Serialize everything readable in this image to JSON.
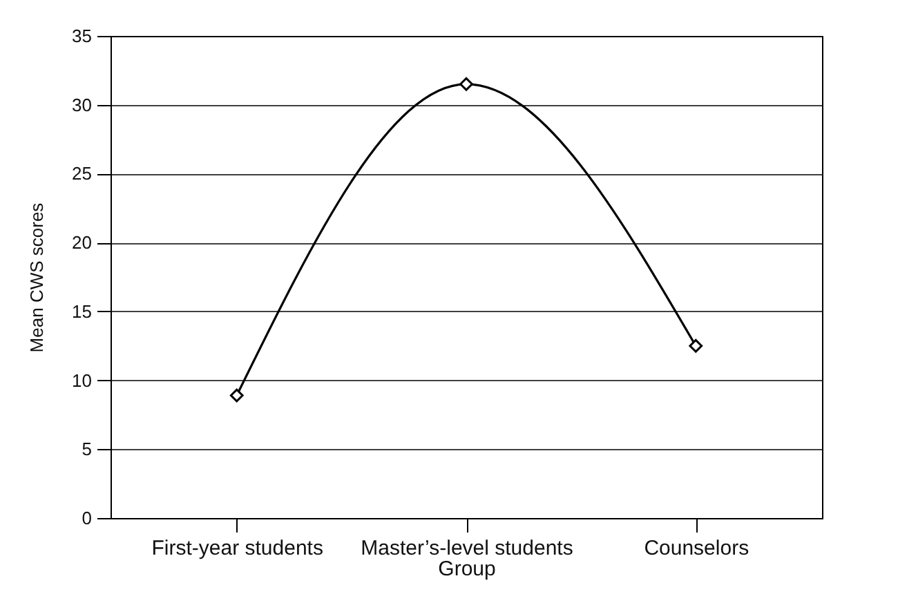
{
  "chart_data": {
    "type": "line",
    "xlabel": "Group",
    "ylabel": "Mean CWS scores",
    "categories": [
      "First-year students",
      "Master’s-level students",
      "Counselors"
    ],
    "series": [
      {
        "color": "#000000",
        "values": [
          8.9,
          31.5,
          12.5
        ]
      }
    ],
    "ylim": [
      0,
      35
    ],
    "yticks": [
      0,
      5,
      10,
      15,
      20,
      25,
      30,
      35
    ],
    "grid": "y",
    "marker": "diamond",
    "line_style": "solid"
  }
}
